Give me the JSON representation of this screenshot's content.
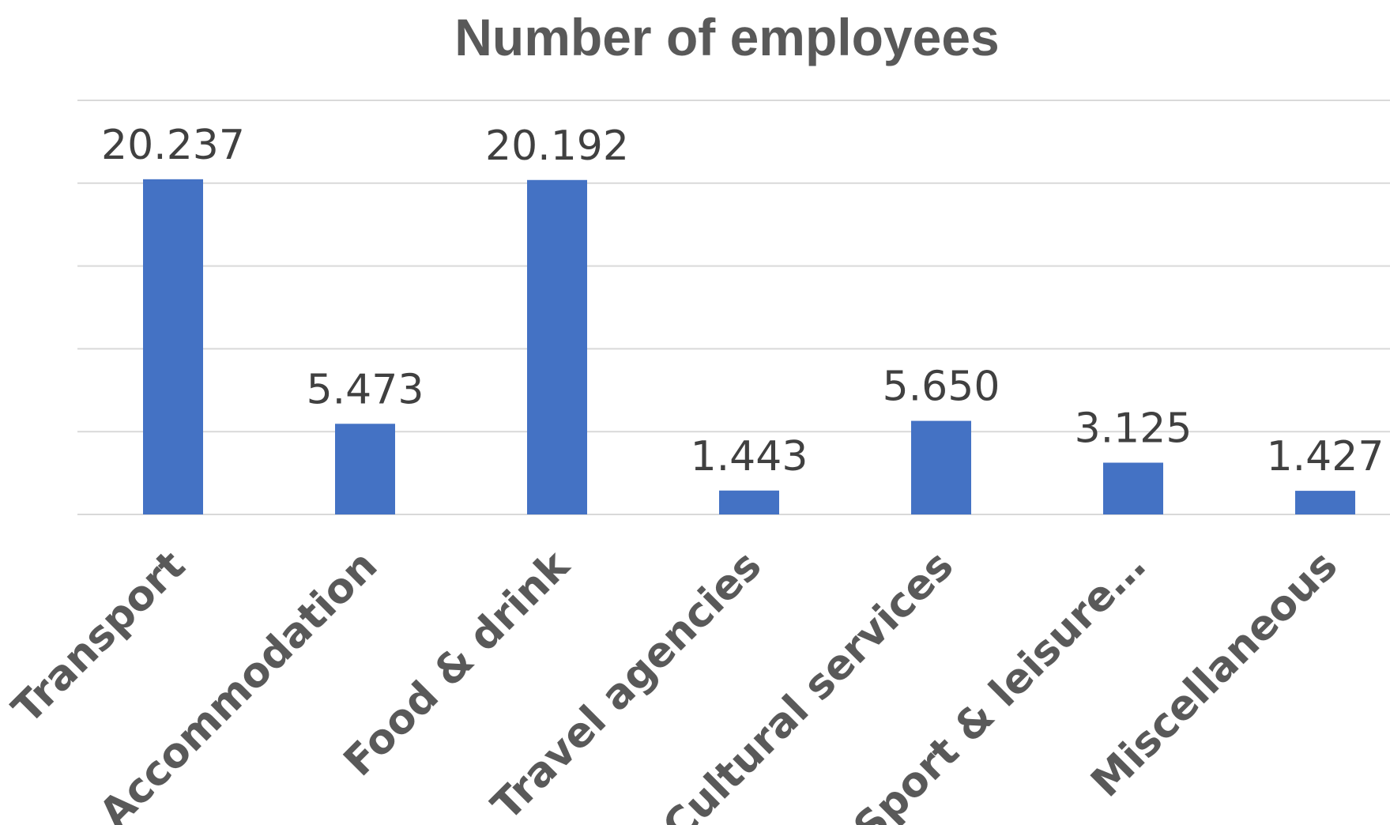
{
  "chart_data": {
    "type": "bar",
    "title": "Number of employees",
    "xlabel": "",
    "ylabel": "",
    "categories": [
      "Transport",
      "Accommodation",
      "Food & drink",
      "Travel agencies",
      "Cultural services",
      "Sport & leisure…",
      "Miscellaneous"
    ],
    "values": [
      20237,
      5473,
      20192,
      1443,
      5650,
      3125,
      1427
    ],
    "data_labels": [
      "20.237",
      "5.473",
      "20.192",
      "1.443",
      "5.650",
      "3.125",
      "1.427"
    ],
    "ylim": [
      0,
      25000
    ],
    "ytick_step": 5000,
    "grid": true,
    "legend": "none",
    "bar_color": "#4472C4"
  }
}
